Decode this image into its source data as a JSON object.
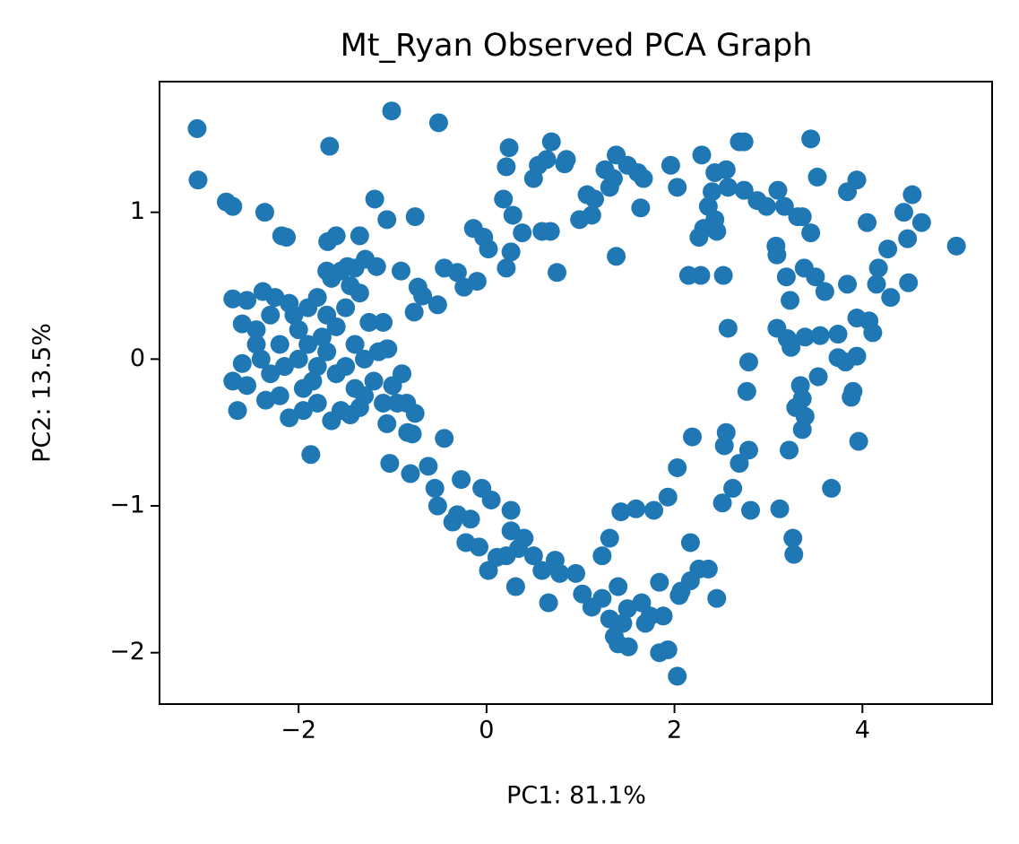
{
  "chart_data": {
    "type": "scatter",
    "title": "Mt_Ryan Observed PCA Graph",
    "x_label": "PC1: 81.1%",
    "y_label": "PC2: 13.5%",
    "color": "#1f77b4",
    "xlim": [
      -3.48,
      5.38
    ],
    "ylim": [
      -2.35,
      1.89
    ],
    "xticks": [
      {
        "value": -2,
        "label": "−2"
      },
      0,
      2,
      4
    ],
    "yticks": [
      {
        "value": -2,
        "label": "−2"
      },
      {
        "value": -1,
        "label": "−1"
      },
      0,
      1
    ],
    "x": [
      -3.08,
      -3.07,
      -1.01,
      -0.51,
      -1.67,
      -2.77,
      -2.7,
      -2.36,
      -2.18,
      -2.13,
      -1.19,
      -1.06,
      -0.76,
      -1.69,
      -1.6,
      -1.35,
      -1.29,
      -1.4,
      -1.48,
      -1.7,
      -0.91,
      -1.17,
      -0.73,
      -0.45,
      -0.31,
      -0.24,
      -0.1,
      -0.52,
      -0.77,
      -0.68,
      -0.14,
      -0.03,
      0.02,
      0.21,
      0.26,
      0.28,
      0.38,
      0.18,
      0.21,
      0.24,
      0.5,
      0.55,
      0.64,
      0.69,
      0.83,
      0.85,
      0.68,
      0.59,
      0.75,
      0.99,
      1.07,
      1.12,
      1.15,
      1.26,
      1.31,
      1.38,
      1.35,
      1.5,
      1.61,
      1.67,
      1.64,
      1.38,
      1.96,
      2.03,
      2.29,
      2.43,
      2.55,
      2.69,
      2.74,
      2.57,
      2.4,
      2.36,
      2.43,
      2.31,
      2.26,
      2.45,
      2.74,
      2.88,
      2.98,
      3.1,
      3.17,
      3.31,
      3.36,
      3.45,
      3.52,
      3.45,
      3.08,
      3.09,
      3.84,
      3.94,
      4.05,
      4.53,
      4.44,
      4.63,
      5.0,
      4.27,
      4.48,
      2.15,
      2.28,
      2.52,
      3.19,
      3.38,
      3.5,
      3.6,
      3.84,
      4.17,
      4.15,
      4.49,
      4.3,
      3.23,
      2.57,
      3.09,
      3.2,
      3.24,
      3.39,
      3.55,
      3.74,
      3.94,
      4.07,
      4.11,
      3.74,
      3.94,
      3.82,
      2.79,
      2.77,
      3.34,
      3.53,
      3.36,
      3.29,
      3.39,
      3.36,
      3.9,
      3.88,
      3.96,
      3.67,
      3.22,
      2.19,
      2.55,
      2.53,
      2.79,
      2.69,
      2.03,
      2.62,
      2.51,
      2.81,
      3.12,
      3.26,
      3.27,
      1.93,
      1.78,
      1.59,
      1.43,
      1.31,
      1.23,
      2.17,
      2.26,
      2.36,
      2.17,
      2.07,
      2.45,
      2.05,
      1.84,
      1.4,
      1.23,
      1.12,
      1.31,
      1.5,
      1.65,
      1.74,
      1.88,
      1.69,
      1.45,
      1.36,
      1.4,
      1.51,
      1.84,
      1.93,
      2.03,
      0.66,
      1.02,
      0.95,
      0.78,
      0.73,
      0.59,
      0.5,
      0.4,
      0.26,
      0.34,
      0.21,
      0.31,
      0.02,
      0.11,
      -0.08,
      -0.22,
      -0.17,
      -0.31,
      -0.36,
      -0.52,
      -0.55,
      -0.27,
      -0.05,
      0.05,
      0.26,
      -0.81,
      -0.62,
      -0.45,
      -0.76,
      -0.84,
      -1.03,
      -0.79,
      -1.06,
      -1.87,
      -1.06,
      -2.7,
      -2.55,
      -2.38,
      -2.25,
      -2.1,
      -2.6,
      -2.45,
      -2.3,
      -2.2,
      -2.0,
      -1.9,
      -1.8,
      -1.7,
      -1.6,
      -1.5,
      -1.4,
      -1.3,
      -1.25,
      -1.1,
      -1.05,
      -2.4,
      -2.3,
      -2.15,
      -2.0,
      -1.9,
      -1.8,
      -1.7,
      -1.6,
      -1.5,
      -1.4,
      -1.3,
      -1.2,
      -1.1,
      -0.95,
      -0.85,
      -2.6,
      -2.7,
      -2.55,
      -2.35,
      -2.2,
      -2.1,
      -1.95,
      -1.8,
      -1.65,
      -1.55,
      -1.45,
      -2.65,
      -1.35,
      -1.0,
      -0.9,
      -1.75,
      -1.95,
      -2.05,
      -1.65,
      -1.55,
      -1.45,
      -1.35,
      -2.45,
      -1.85,
      -1.15
    ],
    "values": [
      1.57,
      1.22,
      1.69,
      1.61,
      1.45,
      1.07,
      1.04,
      1.0,
      0.84,
      0.83,
      1.09,
      0.95,
      0.97,
      0.8,
      0.84,
      0.84,
      0.68,
      0.62,
      0.63,
      0.6,
      0.6,
      0.63,
      0.49,
      0.62,
      0.59,
      0.49,
      0.53,
      0.37,
      0.32,
      0.43,
      0.89,
      0.83,
      0.75,
      0.62,
      0.73,
      0.98,
      0.86,
      1.09,
      1.31,
      1.44,
      1.23,
      1.32,
      1.36,
      1.48,
      1.33,
      1.36,
      0.87,
      0.87,
      0.59,
      0.95,
      1.12,
      0.98,
      1.09,
      1.29,
      1.17,
      1.39,
      1.23,
      1.32,
      1.27,
      1.23,
      1.03,
      0.7,
      1.32,
      1.17,
      1.39,
      1.27,
      1.29,
      1.48,
      1.48,
      1.17,
      1.14,
      1.04,
      0.95,
      0.89,
      0.83,
      0.87,
      1.15,
      1.08,
      1.04,
      1.15,
      1.04,
      0.97,
      0.97,
      1.5,
      1.24,
      0.86,
      0.77,
      0.71,
      1.14,
      1.22,
      0.93,
      1.12,
      1.0,
      0.93,
      0.77,
      0.75,
      0.82,
      0.57,
      0.57,
      0.57,
      0.56,
      0.62,
      0.56,
      0.46,
      0.51,
      0.62,
      0.51,
      0.52,
      0.42,
      0.4,
      0.21,
      0.21,
      0.14,
      0.08,
      0.15,
      0.16,
      0.17,
      0.28,
      0.26,
      0.18,
      0.01,
      0.02,
      -0.02,
      -0.02,
      -0.22,
      -0.18,
      -0.12,
      -0.27,
      -0.33,
      -0.39,
      -0.48,
      -0.22,
      -0.26,
      -0.56,
      -0.88,
      -0.62,
      -0.53,
      -0.5,
      -0.59,
      -0.62,
      -0.71,
      -0.74,
      -0.88,
      -0.98,
      -1.03,
      -1.02,
      -1.22,
      -1.33,
      -0.94,
      -1.03,
      -1.02,
      -1.04,
      -1.22,
      -1.34,
      -1.25,
      -1.43,
      -1.43,
      -1.51,
      -1.58,
      -1.63,
      -1.61,
      -1.52,
      -1.55,
      -1.63,
      -1.69,
      -1.77,
      -1.7,
      -1.66,
      -1.75,
      -1.75,
      -1.8,
      -1.8,
      -1.89,
      -1.94,
      -1.96,
      -2.0,
      -1.98,
      -2.16,
      -1.66,
      -1.6,
      -1.46,
      -1.46,
      -1.37,
      -1.44,
      -1.34,
      -1.22,
      -1.17,
      -1.29,
      -1.34,
      -1.55,
      -1.44,
      -1.35,
      -1.28,
      -1.25,
      -1.09,
      -1.06,
      -1.11,
      -1.0,
      -0.88,
      -0.82,
      -0.88,
      -0.96,
      -1.03,
      -0.78,
      -0.73,
      -0.54,
      -0.37,
      -0.5,
      -0.71,
      -0.51,
      -0.44,
      -0.65,
      0.07,
      0.41,
      0.4,
      0.46,
      0.42,
      0.38,
      0.24,
      0.2,
      0.3,
      0.1,
      0.2,
      0.35,
      0.42,
      0.3,
      0.22,
      0.35,
      0.1,
      0.0,
      0.25,
      0.25,
      0.07,
      0.0,
      -0.1,
      -0.05,
      0.0,
      0.1,
      -0.05,
      0.05,
      -0.1,
      -0.05,
      -0.2,
      -0.25,
      -0.15,
      -0.3,
      -0.3,
      -0.3,
      -0.03,
      -0.15,
      -0.18,
      -0.28,
      -0.25,
      -0.4,
      -0.35,
      -0.3,
      -0.42,
      -0.35,
      -0.38,
      -0.35,
      -0.33,
      -0.18,
      -0.1,
      0.15,
      -0.2,
      0.3,
      0.55,
      0.6,
      0.5,
      0.45,
      0.1,
      -0.15,
      0.05
    ]
  }
}
